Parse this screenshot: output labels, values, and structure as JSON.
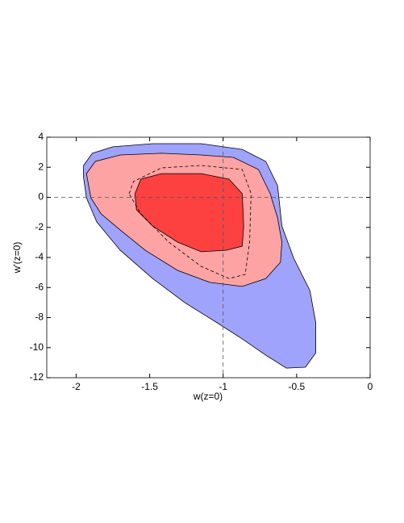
{
  "chart_data": {
    "type": "contour",
    "xlabel": "w(z=0)",
    "ylabel": "w'(z=0)",
    "xlim": [
      -2.2,
      0
    ],
    "ylim": [
      -12,
      4
    ],
    "xticks": [
      -2,
      -1.5,
      -1,
      -0.5,
      0
    ],
    "yticks": [
      4,
      2,
      0,
      -2,
      -4,
      -6,
      -8,
      -10,
      -12
    ],
    "reflines": {
      "x": -1,
      "y": 0
    },
    "regions": [
      {
        "color": "#a0a3fb",
        "x": [
          -1.95,
          -1.89,
          -1.75,
          -1.48,
          -1.15,
          -0.87,
          -0.71,
          -0.63,
          -0.6,
          -0.52,
          -0.41,
          -0.37,
          -0.37,
          -0.44,
          -0.57,
          -0.71,
          -0.87,
          -1.04,
          -1.26,
          -1.48,
          -1.7,
          -1.86,
          -1.93,
          -1.95
        ],
        "y": [
          2.12,
          2.93,
          3.36,
          3.57,
          3.57,
          3.19,
          2.39,
          0.78,
          -1.91,
          -4.05,
          -6.2,
          -8.35,
          -10.34,
          -11.3,
          -11.36,
          -10.5,
          -9.42,
          -8.35,
          -7.01,
          -5.4,
          -3.52,
          -1.64,
          -0.03,
          1.32
        ]
      },
      {
        "color": "#1a1ae6",
        "x": [
          -1.1,
          -0.98,
          -0.87,
          -0.93,
          -1.04
        ],
        "y": [
          2.6,
          2.5,
          2.07,
          1.96,
          2.23
        ]
      },
      {
        "color": "#fda3a3",
        "x": [
          -1.93,
          -1.87,
          -1.7,
          -1.42,
          -1.15,
          -0.93,
          -0.76,
          -0.68,
          -0.63,
          -0.6,
          -0.61,
          -0.71,
          -0.87,
          -1.09,
          -1.31,
          -1.53,
          -1.7,
          -1.83,
          -1.9
        ],
        "y": [
          1.58,
          2.39,
          2.82,
          2.93,
          2.82,
          2.66,
          1.85,
          0.24,
          -1.37,
          -2.98,
          -4.32,
          -5.4,
          -5.93,
          -5.66,
          -4.86,
          -3.52,
          -2.17,
          -1.1,
          -0.03
        ]
      },
      {
        "color": "#fd4040",
        "x": [
          -1.6,
          -1.56,
          -1.42,
          -1.15,
          -0.96,
          -0.87,
          -0.86,
          -0.87,
          -0.98,
          -1.15,
          -1.31,
          -1.48,
          -1.59
        ],
        "y": [
          0.24,
          1.21,
          1.58,
          1.58,
          1.21,
          0.24,
          -1.91,
          -3.25,
          -3.52,
          -3.62,
          -2.98,
          -1.91,
          -0.83
        ]
      }
    ],
    "lines": [
      {
        "dashed": true,
        "x": [
          -1.64,
          -1.61,
          -1.42,
          -1.15,
          -0.87,
          -0.81,
          -0.82,
          -0.85,
          -0.96,
          -1.15,
          -1.37,
          -1.56,
          -1.64
        ],
        "y": [
          0.24,
          1.05,
          1.96,
          2.12,
          1.85,
          0.24,
          -2.98,
          -5.13,
          -5.4,
          -4.59,
          -2.98,
          -1.1,
          0.24
        ]
      }
    ]
  }
}
